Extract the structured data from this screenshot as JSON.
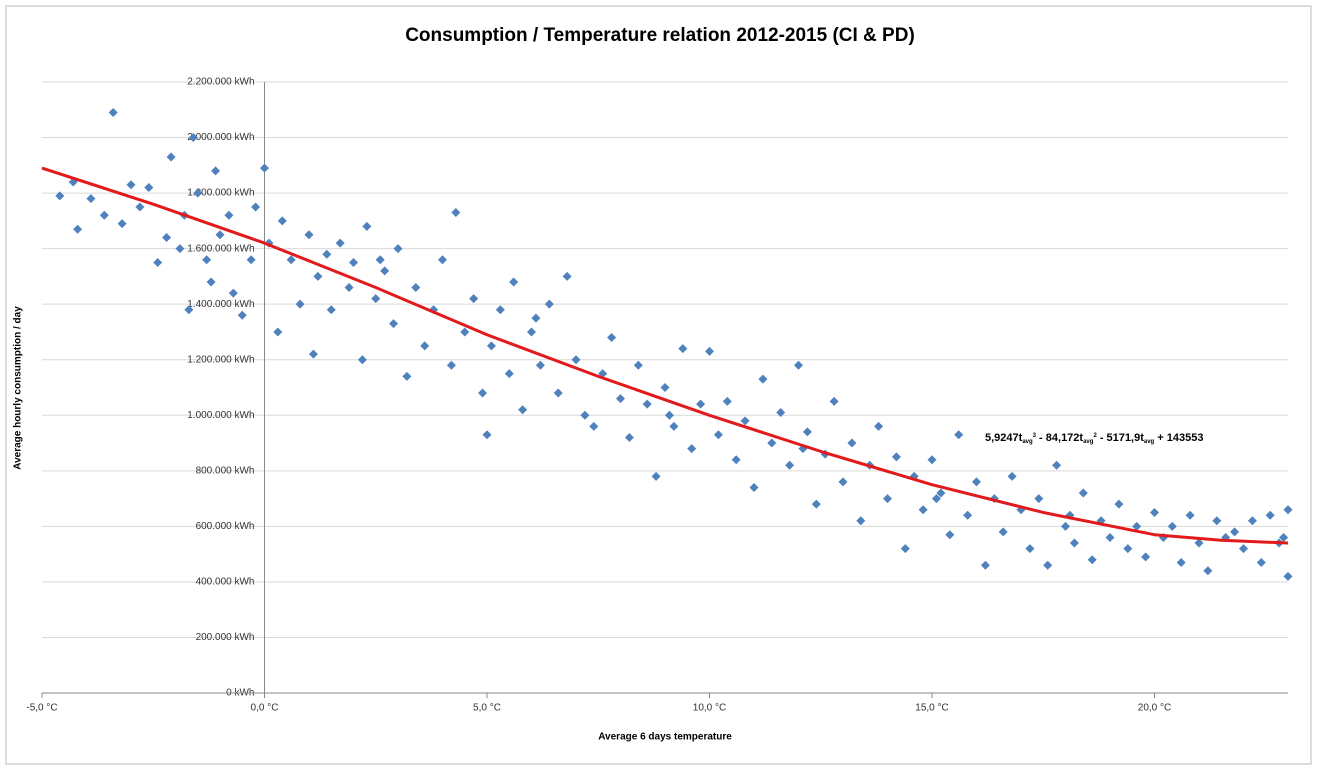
{
  "chart_data": {
    "type": "scatter",
    "title": "Consumption / Temperature relation 2012-2015 (CI & PD)",
    "x_label": "Average  6 days temperature",
    "y_label": "Average hourly consumption / day",
    "color": "#4f81bd",
    "grid": true,
    "xlim": [
      -5,
      23
    ],
    "ylim": [
      0,
      2200000
    ],
    "xticks": [
      {
        "value": -5,
        "label": "-5,0 °C"
      },
      {
        "value": 0,
        "label": "0,0 °C"
      },
      {
        "value": 5,
        "label": "5,0 °C"
      },
      {
        "value": 10,
        "label": "10,0 °C"
      },
      {
        "value": 15,
        "label": "15,0 °C"
      },
      {
        "value": 20,
        "label": "20,0 °C"
      }
    ],
    "yticks": [
      {
        "value": 0,
        "label": "0 kWh"
      },
      {
        "value": 200000,
        "label": "200.000 kWh"
      },
      {
        "value": 400000,
        "label": "400.000 kWh"
      },
      {
        "value": 600000,
        "label": "600.000 kWh"
      },
      {
        "value": 800000,
        "label": "800.000 kWh"
      },
      {
        "value": 1000000,
        "label": "1.000.000 kWh"
      },
      {
        "value": 1200000,
        "label": "1.200.000 kWh"
      },
      {
        "value": 1400000,
        "label": "1.400.000 kWh"
      },
      {
        "value": 1600000,
        "label": "1.600.000 kWh"
      },
      {
        "value": 1800000,
        "label": "1.800.000 kWh"
      },
      {
        "value": 2000000,
        "label": "2.000.000 kWh"
      },
      {
        "value": 2200000,
        "label": "2.200.000 kWh"
      }
    ],
    "x": [
      -4.6,
      -4.3,
      -4.2,
      -3.9,
      -3.6,
      -3.4,
      -3.2,
      -3,
      -2.8,
      -2.6,
      -2.4,
      -2.2,
      -2.1,
      -1.9,
      -1.8,
      -1.7,
      -1.6,
      -1.5,
      -1.3,
      -1.2,
      -1.1,
      -1,
      -0.8,
      -0.7,
      -0.5,
      -0.3,
      -0.2,
      0,
      0.1,
      0.3,
      0.4,
      0.6,
      0.8,
      1,
      1.1,
      1.2,
      1.4,
      1.5,
      1.7,
      1.9,
      2,
      2.2,
      2.3,
      2.5,
      2.7,
      2.9,
      3,
      3.2,
      3.4,
      3.6,
      3.8,
      4,
      4.2,
      4.3,
      4.5,
      4.7,
      4.9,
      5,
      5.1,
      5.3,
      5.5,
      5.6,
      5.8,
      6,
      6.2,
      6.4,
      6.6,
      6.8,
      7,
      7.2,
      7.4,
      7.6,
      7.8,
      8,
      8.2,
      8.4,
      8.6,
      8.8,
      9,
      9.2,
      9.4,
      9.6,
      9.8,
      10,
      10.2,
      10.4,
      10.6,
      10.8,
      11,
      11.2,
      11.4,
      11.6,
      11.8,
      12,
      12.2,
      12.4,
      12.6,
      12.8,
      13,
      13.2,
      13.4,
      13.6,
      13.8,
      14,
      14.2,
      14.4,
      14.6,
      14.8,
      15,
      15.2,
      15.4,
      15.6,
      15.8,
      16,
      16.2,
      16.4,
      16.6,
      16.8,
      17,
      17.2,
      17.4,
      17.6,
      17.8,
      18,
      18.2,
      18.4,
      18.6,
      18.8,
      19,
      19.2,
      19.4,
      19.6,
      19.8,
      20,
      20.2,
      20.4,
      20.6,
      20.8,
      21,
      21.2,
      21.4,
      21.6,
      21.8,
      22,
      22.2,
      22.4,
      22.6,
      22.8,
      23,
      23,
      22.9,
      2.6,
      6.1,
      9.1,
      12.1,
      15.1,
      18.1
    ],
    "y": [
      1790000,
      1840000,
      1670000,
      1780000,
      1720000,
      2090000,
      1690000,
      1830000,
      1750000,
      1820000,
      1550000,
      1640000,
      1930000,
      1600000,
      1720000,
      1380000,
      2000000,
      1800000,
      1560000,
      1480000,
      1880000,
      1650000,
      1720000,
      1440000,
      1360000,
      1560000,
      1750000,
      1890000,
      1620000,
      1300000,
      1700000,
      1560000,
      1400000,
      1650000,
      1220000,
      1500000,
      1580000,
      1380000,
      1620000,
      1460000,
      1550000,
      1200000,
      1680000,
      1420000,
      1520000,
      1330000,
      1600000,
      1140000,
      1460000,
      1250000,
      1380000,
      1560000,
      1180000,
      1730000,
      1300000,
      1420000,
      1080000,
      930000,
      1250000,
      1380000,
      1150000,
      1480000,
      1020000,
      1300000,
      1180000,
      1400000,
      1080000,
      1500000,
      1200000,
      1000000,
      960000,
      1150000,
      1280000,
      1060000,
      920000,
      1180000,
      1040000,
      780000,
      1100000,
      960000,
      1240000,
      880000,
      1040000,
      1230000,
      930000,
      1050000,
      840000,
      980000,
      740000,
      1130000,
      900000,
      1010000,
      820000,
      1180000,
      940000,
      680000,
      860000,
      1050000,
      760000,
      900000,
      620000,
      820000,
      960000,
      700000,
      850000,
      520000,
      780000,
      660000,
      840000,
      720000,
      570000,
      930000,
      640000,
      760000,
      460000,
      700000,
      580000,
      780000,
      660000,
      520000,
      700000,
      460000,
      820000,
      600000,
      540000,
      720000,
      480000,
      620000,
      560000,
      680000,
      520000,
      600000,
      490000,
      650000,
      560000,
      600000,
      470000,
      640000,
      540000,
      440000,
      620000,
      560000,
      580000,
      520000,
      620000,
      470000,
      640000,
      540000,
      420000,
      660000,
      560000,
      1560000,
      1350000,
      1000000,
      880000,
      700000,
      640000
    ],
    "trend": {
      "color": "#e31a1c",
      "x": [
        -5,
        -2.5,
        0,
        2.5,
        5,
        7.5,
        10,
        12.5,
        15,
        17.5,
        20,
        21.5,
        23
      ],
      "y": [
        1890000,
        1760000,
        1620000,
        1460000,
        1290000,
        1140000,
        1000000,
        870000,
        750000,
        650000,
        570000,
        550000,
        540000
      ]
    },
    "annotation": [
      {
        "text": "5,9247t"
      },
      {
        "sub": "avg"
      },
      {
        "sup": "3"
      },
      {
        "text": " - 84,172t"
      },
      {
        "sub": "avg"
      },
      {
        "sup": "2"
      },
      {
        "text": " - 5171,9t"
      },
      {
        "sub": "avg"
      },
      {
        "text": " + 143553"
      }
    ]
  }
}
